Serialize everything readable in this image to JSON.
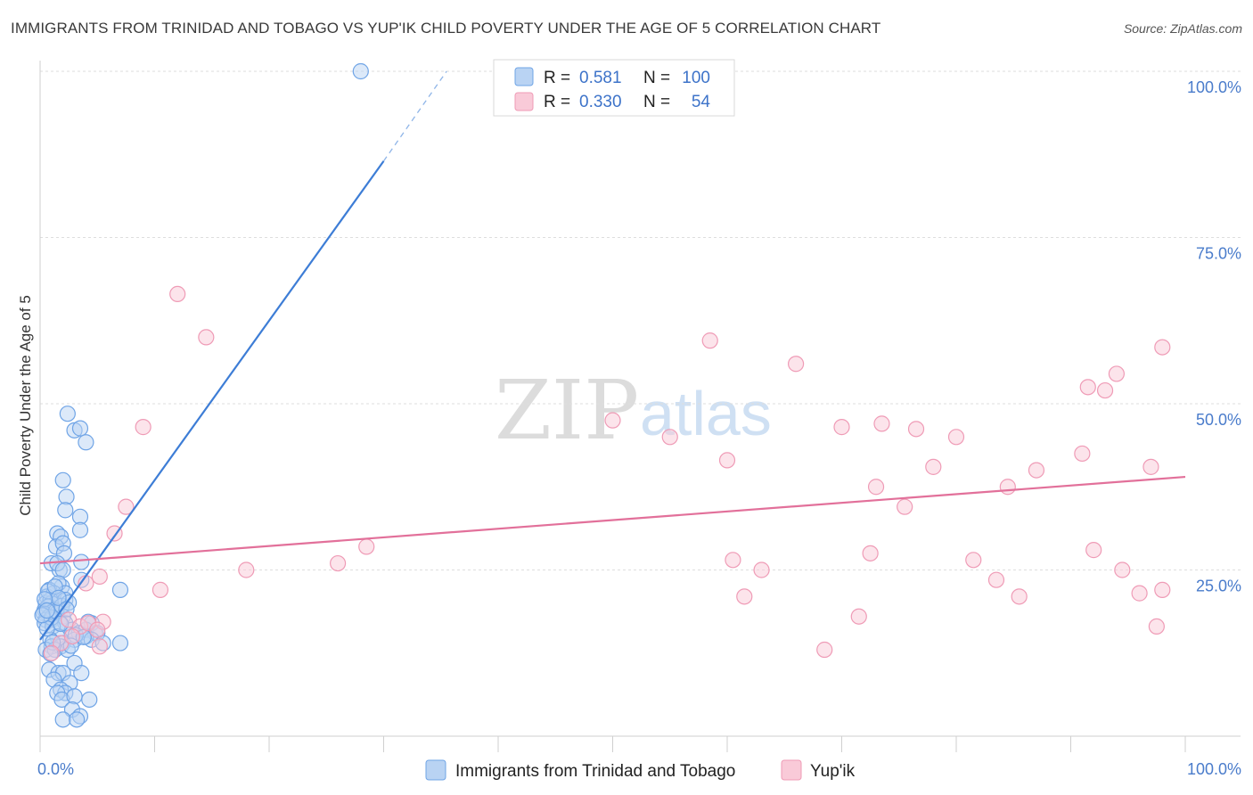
{
  "title": "IMMIGRANTS FROM TRINIDAD AND TOBAGO VS YUP'IK CHILD POVERTY UNDER THE AGE OF 5 CORRELATION CHART",
  "source": "Source: ZipAtlas.com",
  "watermark": {
    "zip": "ZIP",
    "atlas": "atlas"
  },
  "legend_top": [
    {
      "r_label": "R =",
      "r_value": "0.581",
      "n_label": "N =",
      "n_value": "100",
      "color": "#6fa4e6",
      "fill": "#b9d3f3"
    },
    {
      "r_label": "R =",
      "r_value": "0.330",
      "n_label": "N =",
      "n_value": "54",
      "color": "#ef9bb6",
      "fill": "#f9cad8"
    }
  ],
  "legend_bottom": [
    {
      "label": "Immigrants from Trinidad and Tobago",
      "color": "#6fa4e6",
      "fill": "#b9d3f3"
    },
    {
      "label": "Yup'ik",
      "color": "#ef9bb6",
      "fill": "#f9cad8"
    }
  ],
  "chart_data": {
    "type": "scatter",
    "title": "IMMIGRANTS FROM TRINIDAD AND TOBAGO VS YUP'IK CHILD POVERTY UNDER THE AGE OF 5 CORRELATION CHART",
    "xlabel": "",
    "ylabel": "Child Poverty Under the Age of 5",
    "xlim": [
      0,
      100
    ],
    "ylim": [
      0,
      100
    ],
    "x_tick_labels": [
      "0.0%",
      "100.0%"
    ],
    "y_ticks": [
      25,
      50,
      75,
      100
    ],
    "y_tick_labels": [
      "25.0%",
      "50.0%",
      "75.0%",
      "100.0%"
    ],
    "grid": "horizontal dashed",
    "legend_position": "top-center and bottom-center",
    "series": [
      {
        "name": "Immigrants from Trinidad and Tobago",
        "color": "#3d7dd6",
        "trend": {
          "x": [
            0,
            30.0
          ],
          "y": [
            14.5,
            86.5
          ],
          "dashed_to": [
            35.5,
            100.0
          ]
        },
        "points": [
          [
            28.0,
            100.0
          ],
          [
            2.4,
            48.5
          ],
          [
            3.0,
            46.0
          ],
          [
            3.5,
            46.3
          ],
          [
            4.0,
            44.2
          ],
          [
            2.0,
            38.5
          ],
          [
            2.3,
            36.0
          ],
          [
            2.2,
            34.0
          ],
          [
            3.5,
            33.0
          ],
          [
            1.5,
            30.5
          ],
          [
            1.8,
            30.0
          ],
          [
            3.5,
            31.0
          ],
          [
            1.4,
            28.5
          ],
          [
            2.0,
            29.0
          ],
          [
            2.1,
            27.5
          ],
          [
            1.0,
            26.0
          ],
          [
            1.7,
            25.0
          ],
          [
            3.6,
            26.2
          ],
          [
            1.5,
            26.0
          ],
          [
            2.0,
            25.0
          ],
          [
            1.9,
            22.5
          ],
          [
            1.6,
            23.0
          ],
          [
            0.8,
            22.0
          ],
          [
            2.2,
            21.5
          ],
          [
            0.6,
            21.0
          ],
          [
            1.2,
            21.5
          ],
          [
            3.6,
            23.5
          ],
          [
            7.0,
            22.0
          ],
          [
            0.5,
            20.0
          ],
          [
            0.9,
            20.5
          ],
          [
            1.0,
            20.0
          ],
          [
            2.2,
            20.5
          ],
          [
            0.4,
            19.0
          ],
          [
            0.7,
            19.5
          ],
          [
            1.2,
            19.0
          ],
          [
            0.3,
            18.5
          ],
          [
            0.8,
            18.0
          ],
          [
            1.5,
            18.5
          ],
          [
            2.0,
            18.0
          ],
          [
            0.5,
            17.5
          ],
          [
            1.0,
            17.5
          ],
          [
            1.7,
            17.0
          ],
          [
            0.4,
            17.0
          ],
          [
            2.2,
            17.0
          ],
          [
            4.5,
            17.0
          ],
          [
            1.1,
            16.5
          ],
          [
            2.8,
            16.0
          ],
          [
            3.4,
            15.5
          ],
          [
            1.5,
            15.0
          ],
          [
            4.0,
            16.0
          ],
          [
            4.8,
            15.5
          ],
          [
            5.0,
            15.5
          ],
          [
            0.9,
            14.5
          ],
          [
            2.0,
            14.0
          ],
          [
            3.0,
            14.5
          ],
          [
            4.0,
            15.0
          ],
          [
            4.5,
            14.5
          ],
          [
            5.5,
            14.0
          ],
          [
            7.0,
            14.0
          ],
          [
            1.0,
            13.5
          ],
          [
            1.8,
            13.5
          ],
          [
            0.5,
            13.0
          ],
          [
            1.3,
            13.0
          ],
          [
            2.4,
            13.0
          ],
          [
            3.0,
            11.0
          ],
          [
            0.8,
            10.0
          ],
          [
            1.6,
            9.5
          ],
          [
            2.0,
            9.5
          ],
          [
            3.6,
            9.5
          ],
          [
            1.2,
            8.5
          ],
          [
            2.6,
            8.0
          ],
          [
            1.8,
            7.0
          ],
          [
            2.2,
            6.5
          ],
          [
            1.5,
            6.5
          ],
          [
            1.9,
            5.5
          ],
          [
            3.0,
            6.0
          ],
          [
            4.3,
            5.5
          ],
          [
            2.8,
            4.0
          ],
          [
            3.5,
            3.0
          ],
          [
            2.0,
            2.5
          ],
          [
            3.2,
            2.5
          ],
          [
            1.0,
            17.8
          ],
          [
            1.4,
            18.8
          ],
          [
            0.6,
            16.2
          ],
          [
            1.9,
            19.6
          ],
          [
            0.7,
            21.8
          ],
          [
            1.3,
            22.5
          ],
          [
            2.5,
            20.1
          ],
          [
            0.2,
            18.2
          ],
          [
            1.6,
            20.8
          ],
          [
            3.1,
            15.2
          ],
          [
            2.7,
            13.6
          ],
          [
            1.1,
            14.1
          ],
          [
            0.9,
            12.4
          ],
          [
            4.2,
            17.2
          ],
          [
            2.3,
            19.1
          ],
          [
            0.4,
            20.6
          ],
          [
            1.8,
            16.9
          ],
          [
            3.8,
            14.9
          ],
          [
            0.6,
            18.9
          ]
        ]
      },
      {
        "name": "Yup'ik",
        "color": "#e2709a",
        "trend": {
          "x": [
            0,
            100
          ],
          "y": [
            26.0,
            39.0
          ]
        },
        "points": [
          [
            12.0,
            66.5
          ],
          [
            14.5,
            60.0
          ],
          [
            58.5,
            59.5
          ],
          [
            66.0,
            56.0
          ],
          [
            98.0,
            58.5
          ],
          [
            94.0,
            54.5
          ],
          [
            93.0,
            52.0
          ],
          [
            91.5,
            52.5
          ],
          [
            9.0,
            46.5
          ],
          [
            50.0,
            47.5
          ],
          [
            70.0,
            46.5
          ],
          [
            73.5,
            47.0
          ],
          [
            76.5,
            46.2
          ],
          [
            55.0,
            45.0
          ],
          [
            80.0,
            45.0
          ],
          [
            60.0,
            41.5
          ],
          [
            78.0,
            40.5
          ],
          [
            87.0,
            40.0
          ],
          [
            91.0,
            42.5
          ],
          [
            97.0,
            40.5
          ],
          [
            73.0,
            37.5
          ],
          [
            84.5,
            37.5
          ],
          [
            75.5,
            34.5
          ],
          [
            7.5,
            34.5
          ],
          [
            6.5,
            30.5
          ],
          [
            28.5,
            28.5
          ],
          [
            60.5,
            26.5
          ],
          [
            72.5,
            27.5
          ],
          [
            81.5,
            26.5
          ],
          [
            92.0,
            28.0
          ],
          [
            18.0,
            25.0
          ],
          [
            26.0,
            26.0
          ],
          [
            63.0,
            25.0
          ],
          [
            94.5,
            25.0
          ],
          [
            83.5,
            23.5
          ],
          [
            5.2,
            24.0
          ],
          [
            4.0,
            23.0
          ],
          [
            10.5,
            22.0
          ],
          [
            61.5,
            21.0
          ],
          [
            85.5,
            21.0
          ],
          [
            96.0,
            21.5
          ],
          [
            98.0,
            22.0
          ],
          [
            71.5,
            18.0
          ],
          [
            97.5,
            16.5
          ],
          [
            68.5,
            13.0
          ],
          [
            2.5,
            17.5
          ],
          [
            3.5,
            16.5
          ],
          [
            4.2,
            17.0
          ],
          [
            5.5,
            17.2
          ],
          [
            5.0,
            16.0
          ],
          [
            1.8,
            14.0
          ],
          [
            2.8,
            15.0
          ],
          [
            5.2,
            13.5
          ],
          [
            1.0,
            12.5
          ]
        ]
      }
    ]
  }
}
